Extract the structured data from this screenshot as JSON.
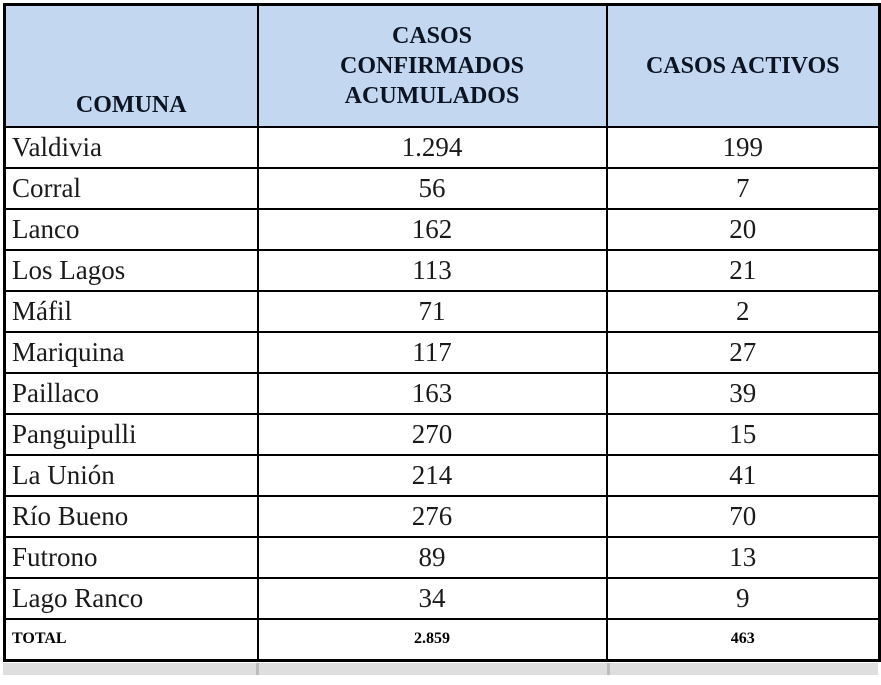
{
  "table": {
    "columns": [
      {
        "label": "COMUNA"
      },
      {
        "label": "CASOS CONFIRMADOS ACUMULADOS"
      },
      {
        "label": "CASOS ACTIVOS"
      }
    ],
    "rows": [
      [
        "Valdivia",
        "1.294",
        "199"
      ],
      [
        "Corral",
        "56",
        "7"
      ],
      [
        "Lanco",
        "162",
        "20"
      ],
      [
        "Los Lagos",
        "113",
        "21"
      ],
      [
        "Máfil",
        "71",
        "2"
      ],
      [
        "Mariquina",
        "117",
        "27"
      ],
      [
        "Paillaco",
        "163",
        "39"
      ],
      [
        "Panguipulli",
        "270",
        "15"
      ],
      [
        "La Unión",
        "214",
        "41"
      ],
      [
        "Río Bueno",
        "276",
        "70"
      ],
      [
        "Futrono",
        "89",
        "13"
      ],
      [
        "Lago Ranco",
        "34",
        "9"
      ]
    ],
    "total": {
      "label": "TOTAL",
      "confirmed": "2.859",
      "active": "463"
    }
  },
  "colors": {
    "header_bg": "#C3D8F0",
    "border": "#000000",
    "header_text": "#0C1322",
    "body_text": "#1A1A1A"
  },
  "chart_data": {
    "type": "table",
    "title": "",
    "columns": [
      "COMUNA",
      "CASOS CONFIRMADOS ACUMULADOS",
      "CASOS ACTIVOS"
    ],
    "categories": [
      "Valdivia",
      "Corral",
      "Lanco",
      "Los Lagos",
      "Máfil",
      "Mariquina",
      "Paillaco",
      "Panguipulli",
      "La Unión",
      "Río Bueno",
      "Futrono",
      "Lago Ranco"
    ],
    "series": [
      {
        "name": "CASOS CONFIRMADOS ACUMULADOS",
        "values": [
          1294,
          56,
          162,
          113,
          71,
          117,
          163,
          270,
          214,
          276,
          89,
          34
        ]
      },
      {
        "name": "CASOS ACTIVOS",
        "values": [
          199,
          7,
          20,
          21,
          2,
          27,
          39,
          15,
          41,
          70,
          13,
          9
        ]
      }
    ],
    "totals": {
      "CASOS CONFIRMADOS ACUMULADOS": 2859,
      "CASOS ACTIVOS": 463
    }
  }
}
